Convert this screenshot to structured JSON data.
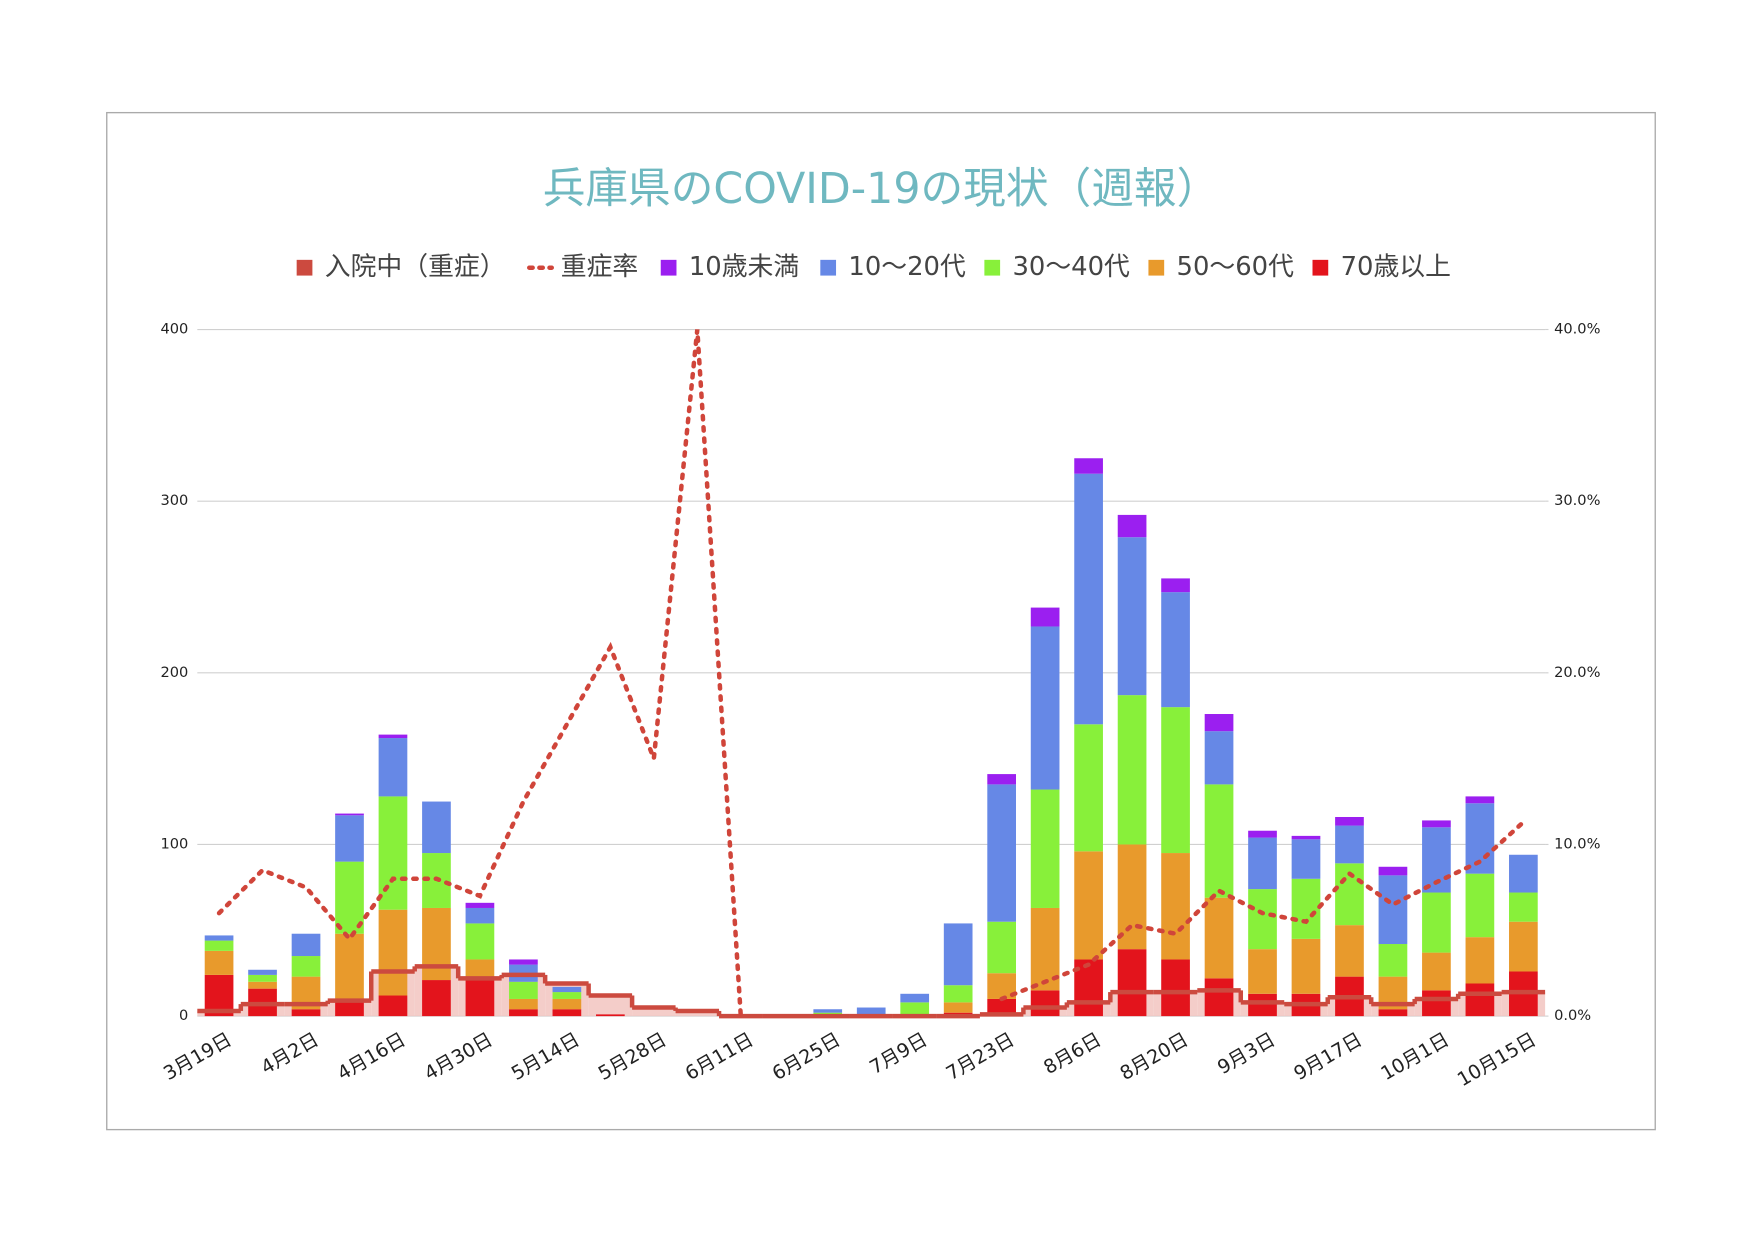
{
  "chart_data": {
    "type": "bar",
    "stacked": true,
    "title": "兵庫県のCOVID-19の現状（週報）",
    "categories": [
      "3月19日",
      null,
      "4月2日",
      null,
      "4月16日",
      null,
      "4月30日",
      null,
      "5月14日",
      null,
      "5月28日",
      null,
      "6月11日",
      null,
      "6月25日",
      null,
      "7月9日",
      null,
      "7月23日",
      null,
      "8月6日",
      null,
      "8月20日",
      null,
      "9月3日",
      null,
      "9月17日",
      null,
      "10月1日",
      null,
      "10月15日"
    ],
    "ylim": [
      0,
      400
    ],
    "yticks": [
      0,
      100,
      200,
      300,
      400
    ],
    "y2lim": [
      0,
      40
    ],
    "y2ticks": [
      {
        "value": 0,
        "label": "0.0%"
      },
      {
        "value": 10,
        "label": "10.0%"
      },
      {
        "value": 20,
        "label": "20.0%"
      },
      {
        "value": 30,
        "label": "30.0%"
      },
      {
        "value": 40,
        "label": "40.0%"
      }
    ],
    "grid": true,
    "legend": "top",
    "series": [
      {
        "name": "入院中（重症）",
        "type": "step-area",
        "color": "#cc4a3f",
        "values": [
          3,
          7,
          7,
          9,
          26,
          29,
          22,
          24,
          19,
          12,
          5,
          3,
          0,
          0,
          0,
          0,
          0,
          0,
          1,
          5,
          8,
          14,
          14,
          15,
          8,
          7,
          11,
          7,
          10,
          13,
          14
        ]
      },
      {
        "name": "重症率",
        "type": "line",
        "axis": "y2",
        "color": "#d0453a",
        "values": [
          6,
          8.5,
          7.5,
          4.5,
          8,
          8,
          7,
          12.5,
          17,
          21.5,
          15,
          40,
          0,
          null,
          null,
          null,
          null,
          null,
          1,
          2,
          3,
          5.3,
          4.8,
          7.3,
          6,
          5.5,
          8.3,
          6.5,
          7.8,
          9,
          11.3
        ]
      },
      {
        "name": "10歳未満",
        "type": "bar",
        "color": "#9b1ff0",
        "values": [
          0,
          0,
          0,
          1,
          2,
          0,
          3,
          3,
          0,
          0,
          0,
          0,
          0,
          0,
          0,
          0,
          0,
          0,
          6,
          11,
          9,
          13,
          8,
          10,
          4,
          2,
          5,
          5,
          4,
          4,
          0
        ]
      },
      {
        "name": "10～20代",
        "type": "bar",
        "color": "#6688e6",
        "values": [
          3,
          3,
          13,
          27,
          34,
          30,
          9,
          10,
          3,
          0,
          0,
          0,
          0,
          0,
          2,
          5,
          5,
          36,
          80,
          95,
          146,
          92,
          67,
          31,
          30,
          23,
          22,
          40,
          38,
          41,
          22
        ]
      },
      {
        "name": "30～40代",
        "type": "bar",
        "color": "#88f03a",
        "values": [
          6,
          4,
          12,
          42,
          66,
          32,
          21,
          10,
          4,
          0,
          0,
          0,
          0,
          0,
          1,
          0,
          7,
          10,
          30,
          69,
          74,
          87,
          85,
          66,
          35,
          35,
          36,
          19,
          35,
          37,
          17
        ]
      },
      {
        "name": "50～60代",
        "type": "bar",
        "color": "#e89a2c",
        "values": [
          14,
          4,
          19,
          40,
          50,
          42,
          12,
          6,
          6,
          0,
          0,
          0,
          0,
          0,
          1,
          0,
          1,
          6,
          15,
          48,
          63,
          61,
          62,
          47,
          26,
          32,
          30,
          19,
          22,
          27,
          29
        ]
      },
      {
        "name": "70歳以上",
        "type": "bar",
        "color": "#e3141c",
        "values": [
          24,
          16,
          4,
          8,
          12,
          21,
          21,
          4,
          4,
          1,
          0,
          0,
          0,
          0,
          0,
          0,
          0,
          2,
          10,
          15,
          33,
          39,
          33,
          22,
          13,
          13,
          23,
          4,
          15,
          19,
          26
        ]
      }
    ]
  }
}
